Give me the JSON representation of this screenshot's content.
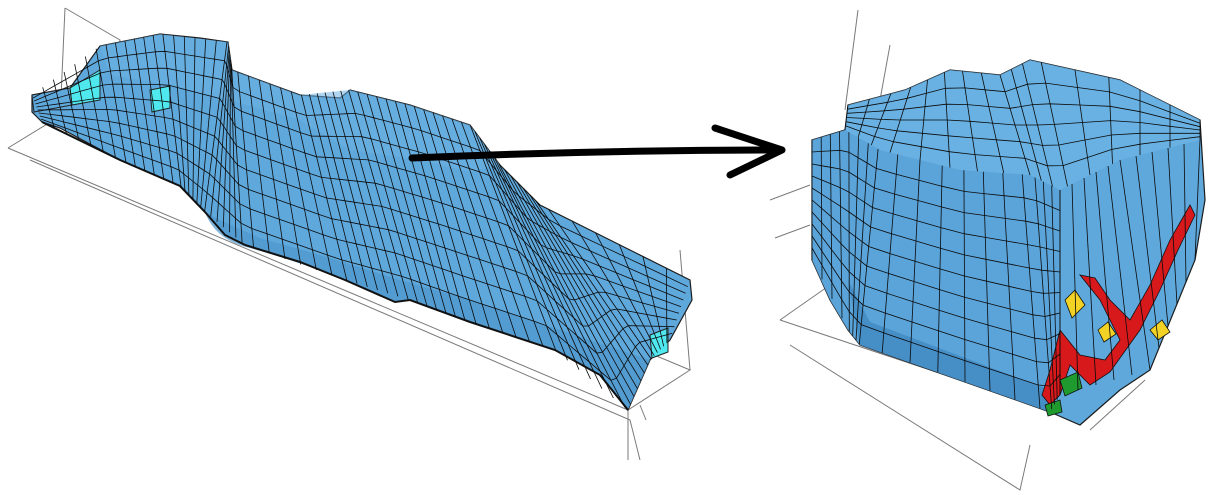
{
  "figure": {
    "left_panel": {
      "surface_color": "#5fa8dc",
      "mesh_line_color": "#0a0a0a",
      "edge_color": "#2f6f9f",
      "highlight_color": "#4fe8ee"
    },
    "right_panel": {
      "surface_color": "#5fa8dc",
      "mesh_line_color": "#0a0a0a",
      "defect_colors": [
        "#d7191c",
        "#f2d224",
        "#1f9a2f"
      ]
    },
    "frame_line_color": "#777777",
    "arrow_color": "#000000"
  }
}
